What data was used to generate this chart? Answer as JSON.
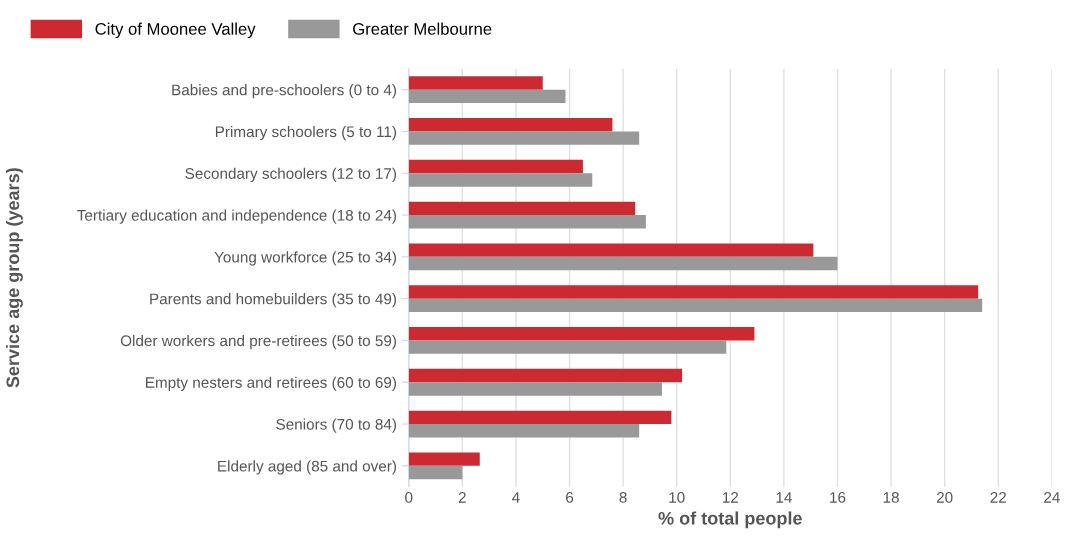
{
  "chart_data": {
    "type": "bar",
    "orientation": "horizontal",
    "ylabel": "Service age group (years)",
    "xlabel": "% of total people",
    "categories": [
      "Babies and pre-schoolers (0 to 4)",
      "Primary schoolers (5 to 11)",
      "Secondary schoolers (12 to 17)",
      "Tertiary education and independence (18 to 24)",
      "Young workforce (25 to 34)",
      "Parents and homebuilders (35 to 49)",
      "Older workers and pre-retirees (50 to 59)",
      "Empty nesters and retirees (60 to 69)",
      "Seniors (70 to 84)",
      "Elderly aged (85 and over)"
    ],
    "series": [
      {
        "name": "City of Moonee Valley",
        "color": "#cc2a30",
        "values": [
          5.0,
          7.6,
          6.5,
          8.45,
          15.1,
          21.25,
          12.9,
          10.2,
          9.8,
          2.65
        ]
      },
      {
        "name": "Greater Melbourne",
        "color": "#999999",
        "values": [
          5.85,
          8.6,
          6.85,
          8.85,
          16.0,
          21.4,
          11.85,
          9.45,
          8.6,
          2.0
        ]
      }
    ],
    "xlim": [
      0,
      24
    ],
    "xticks": [
      0,
      2,
      4,
      6,
      8,
      10,
      12,
      14,
      16,
      18,
      20,
      22,
      24
    ],
    "grid": "x",
    "legend": "top left"
  }
}
